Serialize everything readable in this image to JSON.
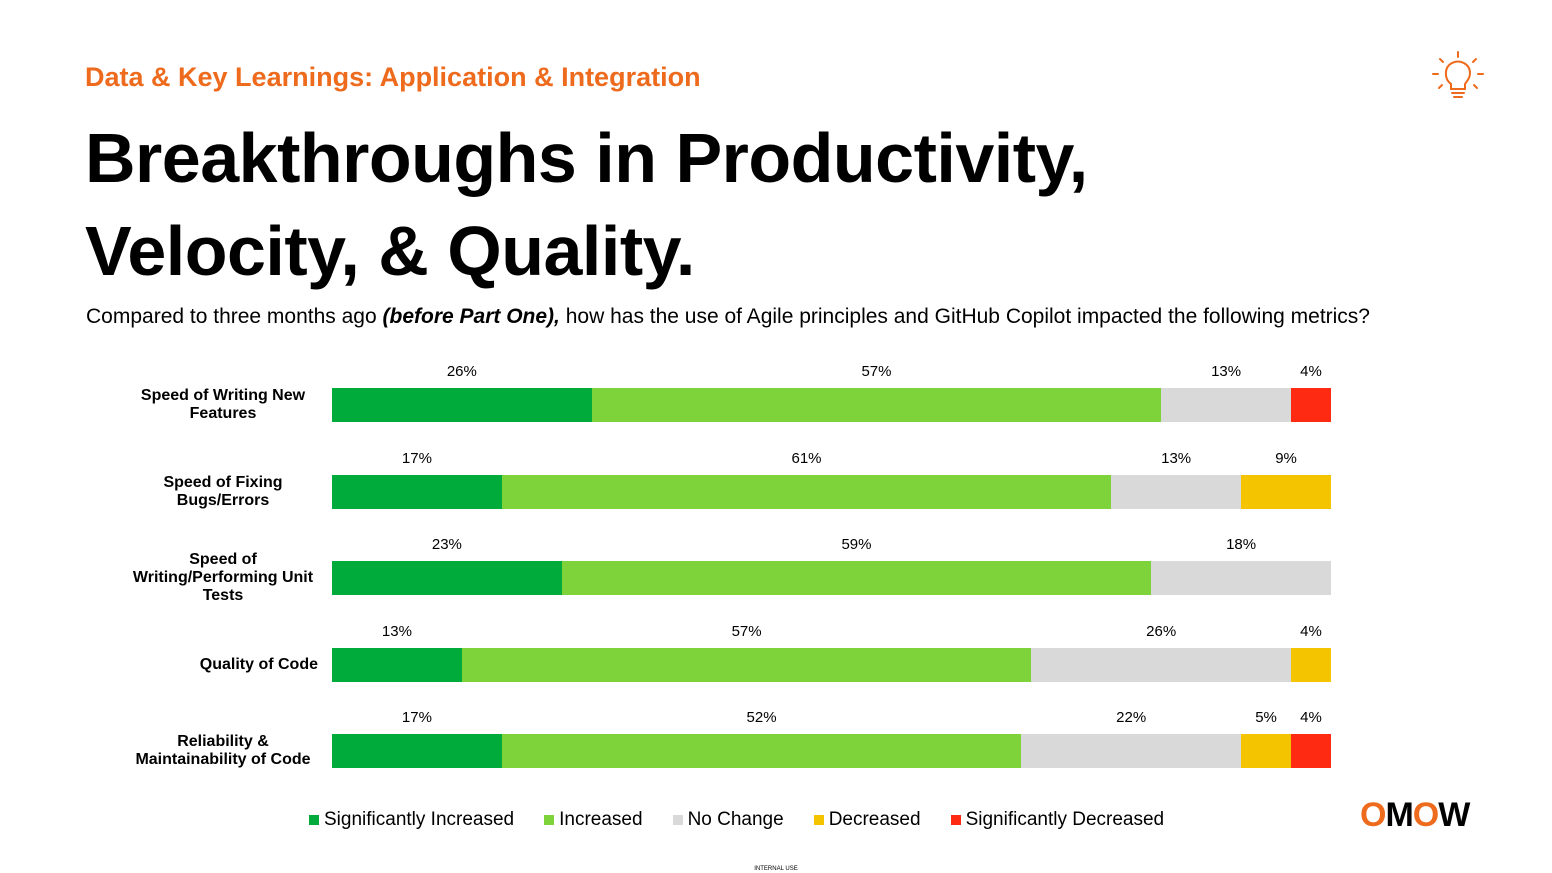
{
  "header": {
    "eyebrow": "Data & Key Learnings: Application & Integration",
    "title": "Breakthroughs in Productivity, Velocity, & Quality.",
    "subtitle": {
      "before": "Compared to three months ago ",
      "emphasis": "(before Part One),",
      "after": " how has the use of Agile principles and GitHub Copilot impacted the following metrics?"
    }
  },
  "chart_data": {
    "type": "bar",
    "orientation": "horizontal",
    "stacked": true,
    "xlim": [
      0,
      100
    ],
    "legend": "bottom",
    "categories": [
      "Speed of Writing New Features",
      "Speed of Fixing Bugs/Errors",
      "Speed of Writing/Performing Unit Tests",
      "Quality of Code",
      "Reliability & Maintainability of Code"
    ],
    "series": [
      {
        "name": "Significantly Increased",
        "color": "#00ab3c",
        "values": [
          26,
          17,
          23,
          13,
          17
        ],
        "value_labels": [
          "26%",
          "17%",
          "23%",
          "13%",
          "17%"
        ]
      },
      {
        "name": "Increased",
        "color": "#7ed33a",
        "values": [
          57,
          61,
          59,
          57,
          52
        ],
        "value_labels": [
          "57%",
          "61%",
          "59%",
          "57%",
          "52%"
        ]
      },
      {
        "name": "No Change",
        "color": "#d9d9d9",
        "values": [
          13,
          13,
          18,
          26,
          22
        ],
        "value_labels": [
          "13%",
          "13%",
          "18%",
          "26%",
          "22%"
        ]
      },
      {
        "name": "Decreased",
        "color": "#f5c400",
        "values": [
          null,
          9,
          null,
          4,
          5
        ],
        "value_labels": [
          null,
          "9%",
          null,
          "4%",
          "5%"
        ]
      },
      {
        "name": "Significantly Decreased",
        "color": "#ff2a12",
        "values": [
          4,
          null,
          null,
          null,
          4
        ],
        "value_labels": [
          "4%",
          null,
          null,
          null,
          "4%"
        ]
      }
    ]
  },
  "footer": {
    "logo": [
      "O",
      "M",
      "O",
      "W"
    ],
    "note": "INTERNAL USE"
  }
}
